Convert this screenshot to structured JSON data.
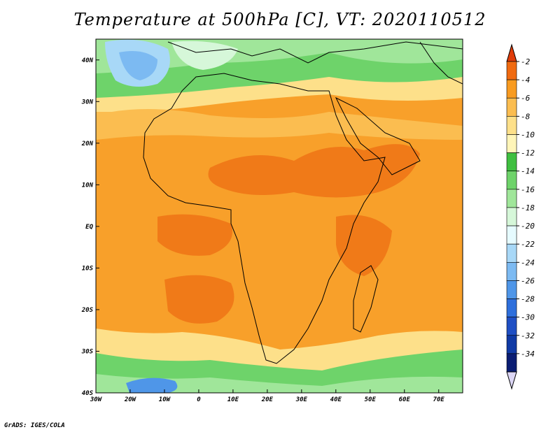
{
  "title": "Temperature at 500hPa [C], VT: 2020110512",
  "credit": "GrADS: IGES/COLA",
  "map": {
    "lon_range": [
      -30,
      77
    ],
    "lat_range": [
      -40,
      45
    ],
    "lon_ticks": [
      "30W",
      "20W",
      "10W",
      "0",
      "10E",
      "20E",
      "30E",
      "40E",
      "50E",
      "60E",
      "70E"
    ],
    "lat_ticks": [
      "40N",
      "30N",
      "20N",
      "10N",
      "EQ",
      "10S",
      "20S",
      "30S",
      "40S"
    ]
  },
  "colorbar": {
    "labels": [
      "-2",
      "-4",
      "-6",
      "-8",
      "-10",
      "-12",
      "-14",
      "-16",
      "-18",
      "-20",
      "-22",
      "-24",
      "-26",
      "-28",
      "-30",
      "-32",
      "-34"
    ],
    "colors": [
      "#e03c0a",
      "#f06a10",
      "#f89b20",
      "#fbbd50",
      "#fde08a",
      "#fff5b8",
      "#3fbf40",
      "#6ed36a",
      "#a0e69a",
      "#d6f7d9",
      "#e6fbff",
      "#a8d8f7",
      "#7cbaf2",
      "#4f96e8",
      "#2e6fdc",
      "#1f4fc4",
      "#103aa5",
      "#0a1d73",
      "#dcd6f5"
    ]
  }
}
